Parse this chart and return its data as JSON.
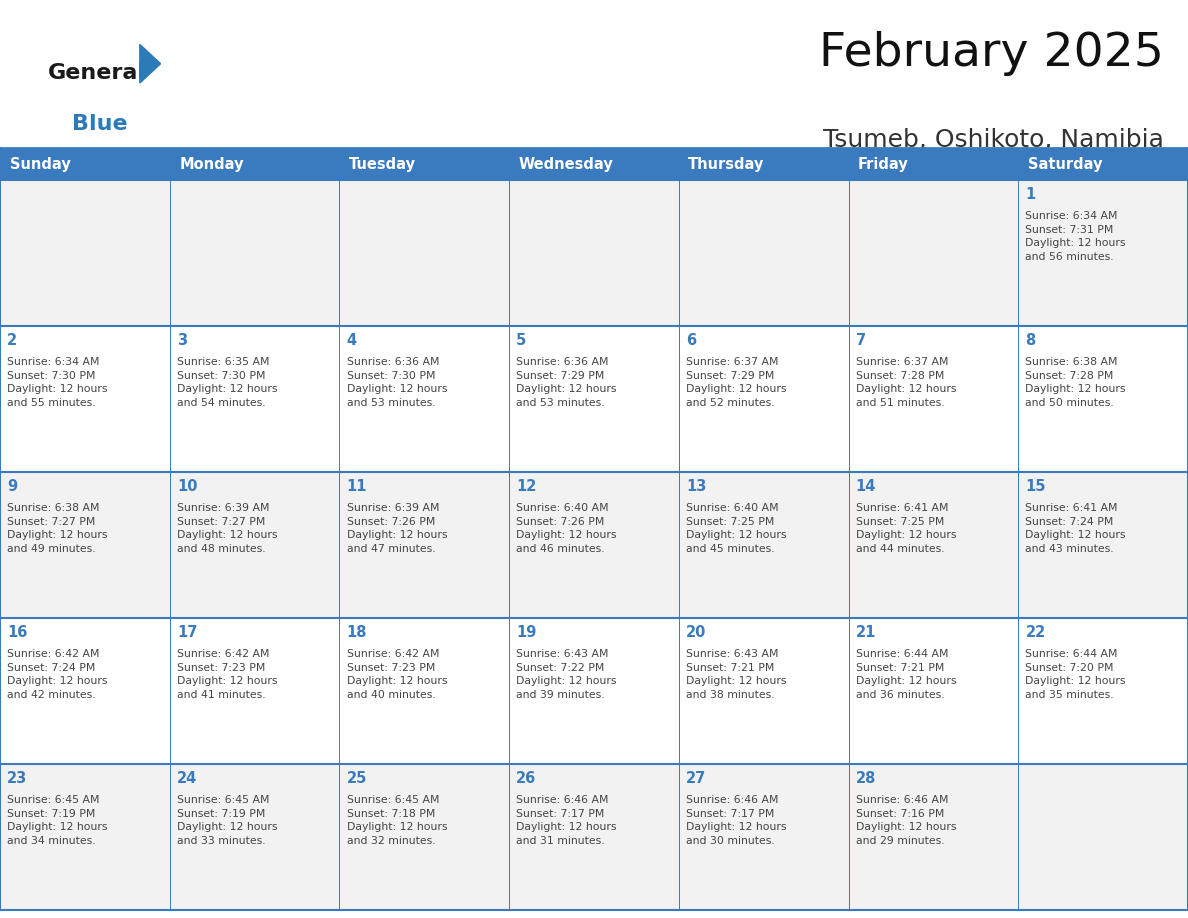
{
  "title": "February 2025",
  "subtitle": "Tsumeb, Oshikoto, Namibia",
  "header_color": "#3a7abf",
  "header_text_color": "#ffffff",
  "cell_bg_even": "#f2f2f2",
  "cell_bg_odd": "#ffffff",
  "border_color": "#3a7abf",
  "text_color": "#444444",
  "day_number_color": "#3a7abf",
  "days_of_week": [
    "Sunday",
    "Monday",
    "Tuesday",
    "Wednesday",
    "Thursday",
    "Friday",
    "Saturday"
  ],
  "weeks": [
    [
      {
        "day": null,
        "info": null
      },
      {
        "day": null,
        "info": null
      },
      {
        "day": null,
        "info": null
      },
      {
        "day": null,
        "info": null
      },
      {
        "day": null,
        "info": null
      },
      {
        "day": null,
        "info": null
      },
      {
        "day": 1,
        "info": "Sunrise: 6:34 AM\nSunset: 7:31 PM\nDaylight: 12 hours\nand 56 minutes."
      }
    ],
    [
      {
        "day": 2,
        "info": "Sunrise: 6:34 AM\nSunset: 7:30 PM\nDaylight: 12 hours\nand 55 minutes."
      },
      {
        "day": 3,
        "info": "Sunrise: 6:35 AM\nSunset: 7:30 PM\nDaylight: 12 hours\nand 54 minutes."
      },
      {
        "day": 4,
        "info": "Sunrise: 6:36 AM\nSunset: 7:30 PM\nDaylight: 12 hours\nand 53 minutes."
      },
      {
        "day": 5,
        "info": "Sunrise: 6:36 AM\nSunset: 7:29 PM\nDaylight: 12 hours\nand 53 minutes."
      },
      {
        "day": 6,
        "info": "Sunrise: 6:37 AM\nSunset: 7:29 PM\nDaylight: 12 hours\nand 52 minutes."
      },
      {
        "day": 7,
        "info": "Sunrise: 6:37 AM\nSunset: 7:28 PM\nDaylight: 12 hours\nand 51 minutes."
      },
      {
        "day": 8,
        "info": "Sunrise: 6:38 AM\nSunset: 7:28 PM\nDaylight: 12 hours\nand 50 minutes."
      }
    ],
    [
      {
        "day": 9,
        "info": "Sunrise: 6:38 AM\nSunset: 7:27 PM\nDaylight: 12 hours\nand 49 minutes."
      },
      {
        "day": 10,
        "info": "Sunrise: 6:39 AM\nSunset: 7:27 PM\nDaylight: 12 hours\nand 48 minutes."
      },
      {
        "day": 11,
        "info": "Sunrise: 6:39 AM\nSunset: 7:26 PM\nDaylight: 12 hours\nand 47 minutes."
      },
      {
        "day": 12,
        "info": "Sunrise: 6:40 AM\nSunset: 7:26 PM\nDaylight: 12 hours\nand 46 minutes."
      },
      {
        "day": 13,
        "info": "Sunrise: 6:40 AM\nSunset: 7:25 PM\nDaylight: 12 hours\nand 45 minutes."
      },
      {
        "day": 14,
        "info": "Sunrise: 6:41 AM\nSunset: 7:25 PM\nDaylight: 12 hours\nand 44 minutes."
      },
      {
        "day": 15,
        "info": "Sunrise: 6:41 AM\nSunset: 7:24 PM\nDaylight: 12 hours\nand 43 minutes."
      }
    ],
    [
      {
        "day": 16,
        "info": "Sunrise: 6:42 AM\nSunset: 7:24 PM\nDaylight: 12 hours\nand 42 minutes."
      },
      {
        "day": 17,
        "info": "Sunrise: 6:42 AM\nSunset: 7:23 PM\nDaylight: 12 hours\nand 41 minutes."
      },
      {
        "day": 18,
        "info": "Sunrise: 6:42 AM\nSunset: 7:23 PM\nDaylight: 12 hours\nand 40 minutes."
      },
      {
        "day": 19,
        "info": "Sunrise: 6:43 AM\nSunset: 7:22 PM\nDaylight: 12 hours\nand 39 minutes."
      },
      {
        "day": 20,
        "info": "Sunrise: 6:43 AM\nSunset: 7:21 PM\nDaylight: 12 hours\nand 38 minutes."
      },
      {
        "day": 21,
        "info": "Sunrise: 6:44 AM\nSunset: 7:21 PM\nDaylight: 12 hours\nand 36 minutes."
      },
      {
        "day": 22,
        "info": "Sunrise: 6:44 AM\nSunset: 7:20 PM\nDaylight: 12 hours\nand 35 minutes."
      }
    ],
    [
      {
        "day": 23,
        "info": "Sunrise: 6:45 AM\nSunset: 7:19 PM\nDaylight: 12 hours\nand 34 minutes."
      },
      {
        "day": 24,
        "info": "Sunrise: 6:45 AM\nSunset: 7:19 PM\nDaylight: 12 hours\nand 33 minutes."
      },
      {
        "day": 25,
        "info": "Sunrise: 6:45 AM\nSunset: 7:18 PM\nDaylight: 12 hours\nand 32 minutes."
      },
      {
        "day": 26,
        "info": "Sunrise: 6:46 AM\nSunset: 7:17 PM\nDaylight: 12 hours\nand 31 minutes."
      },
      {
        "day": 27,
        "info": "Sunrise: 6:46 AM\nSunset: 7:17 PM\nDaylight: 12 hours\nand 30 minutes."
      },
      {
        "day": 28,
        "info": "Sunrise: 6:46 AM\nSunset: 7:16 PM\nDaylight: 12 hours\nand 29 minutes."
      },
      {
        "day": null,
        "info": null
      }
    ]
  ],
  "logo_general_color": "#1a1a1a",
  "logo_blue_color": "#2b7bb9",
  "logo_triangle_color": "#2b7bb9"
}
